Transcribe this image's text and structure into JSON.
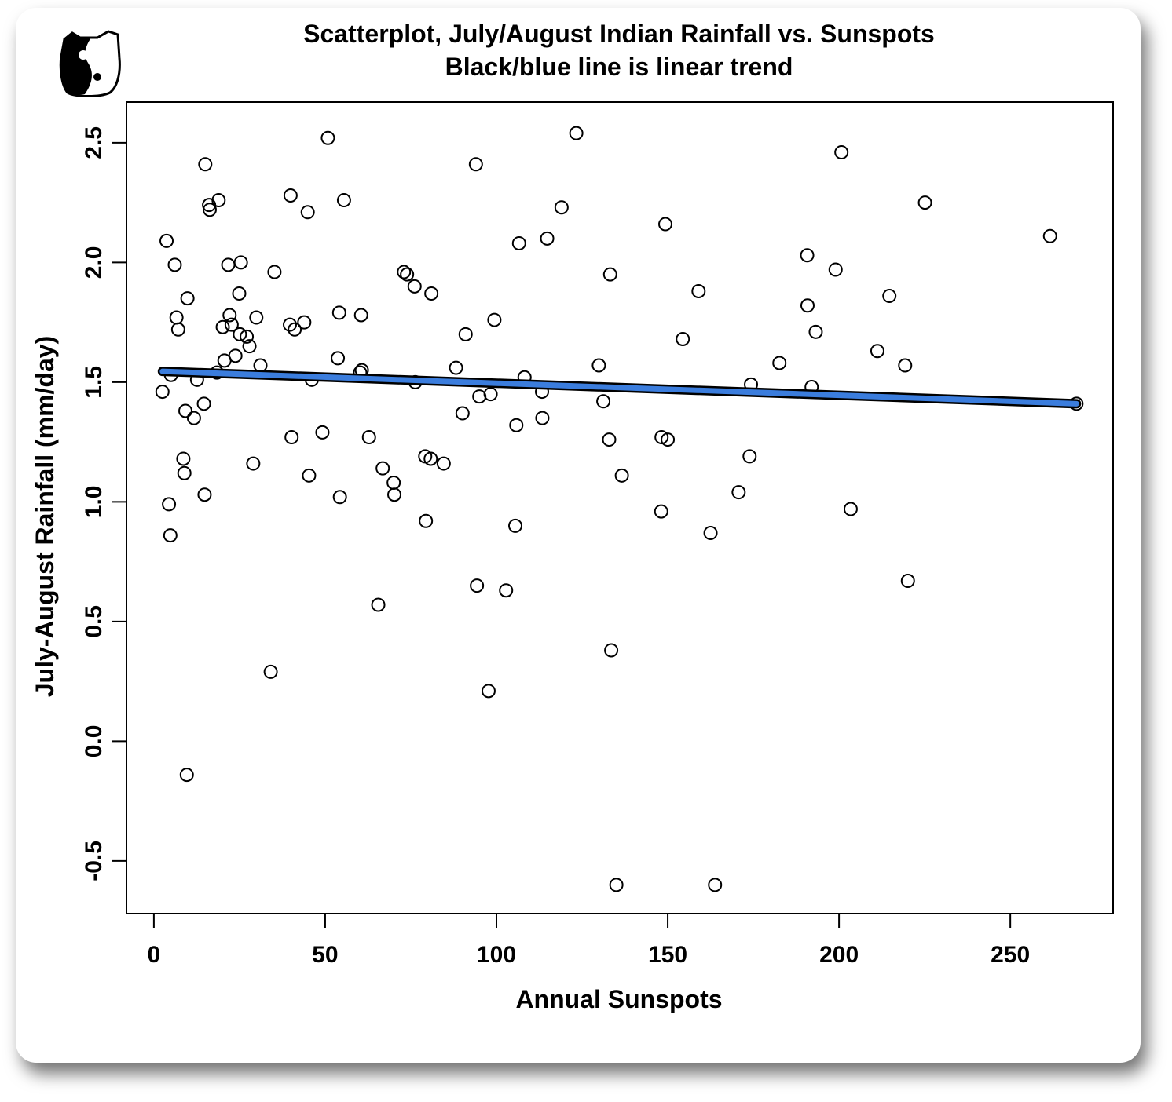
{
  "chart_data": {
    "type": "scatter",
    "title": "Scatterplot, July/August Indian Rainfall vs. Sunspots",
    "subtitle": "Black/blue line is linear trend",
    "xlabel": "Annual Sunspots",
    "ylabel": "July-August Rainfall (mm/day)",
    "xlim": [
      -8,
      280
    ],
    "ylim": [
      -0.72,
      2.67
    ],
    "x_ticks": [
      0,
      50,
      100,
      150,
      200,
      250
    ],
    "x_tick_labels": [
      "0",
      "50",
      "100",
      "150",
      "200",
      "250"
    ],
    "y_ticks": [
      -0.5,
      0.0,
      0.5,
      1.0,
      1.5,
      2.0,
      2.5
    ],
    "y_tick_labels": [
      "-0.5",
      "0.0",
      "0.5",
      "1.0",
      "1.5",
      "2.0",
      "2.5"
    ],
    "grid": false,
    "colors": {
      "trend_line": "#3b7ddd",
      "trend_outline": "#000000",
      "points": "#000000"
    },
    "trend": {
      "x": [
        2.5,
        269.3
      ],
      "y": [
        1.545,
        1.41
      ]
    },
    "points": [
      {
        "x": 2.5,
        "y": 1.46
      },
      {
        "x": 3.7,
        "y": 2.09
      },
      {
        "x": 4.4,
        "y": 0.99
      },
      {
        "x": 4.8,
        "y": 0.86
      },
      {
        "x": 5.0,
        "y": 1.53
      },
      {
        "x": 6.1,
        "y": 1.99
      },
      {
        "x": 6.6,
        "y": 1.77
      },
      {
        "x": 7.1,
        "y": 1.72
      },
      {
        "x": 8.6,
        "y": 1.18
      },
      {
        "x": 8.9,
        "y": 1.12
      },
      {
        "x": 9.2,
        "y": 1.38
      },
      {
        "x": 9.6,
        "y": -0.14
      },
      {
        "x": 9.8,
        "y": 1.85
      },
      {
        "x": 11.7,
        "y": 1.35
      },
      {
        "x": 12.6,
        "y": 1.51
      },
      {
        "x": 14.6,
        "y": 1.41
      },
      {
        "x": 14.8,
        "y": 1.03
      },
      {
        "x": 15.0,
        "y": 2.41
      },
      {
        "x": 16.1,
        "y": 2.24
      },
      {
        "x": 16.3,
        "y": 2.22
      },
      {
        "x": 18.4,
        "y": 1.54
      },
      {
        "x": 18.9,
        "y": 2.26
      },
      {
        "x": 20.1,
        "y": 1.73
      },
      {
        "x": 20.6,
        "y": 1.59
      },
      {
        "x": 21.7,
        "y": 1.99
      },
      {
        "x": 22.1,
        "y": 1.78
      },
      {
        "x": 22.7,
        "y": 1.74
      },
      {
        "x": 23.8,
        "y": 1.61
      },
      {
        "x": 24.9,
        "y": 1.87
      },
      {
        "x": 25.1,
        "y": 1.7
      },
      {
        "x": 25.4,
        "y": 2.0
      },
      {
        "x": 27.1,
        "y": 1.69
      },
      {
        "x": 27.9,
        "y": 1.65
      },
      {
        "x": 29.0,
        "y": 1.16
      },
      {
        "x": 29.9,
        "y": 1.77
      },
      {
        "x": 31.1,
        "y": 1.57
      },
      {
        "x": 34.1,
        "y": 0.29
      },
      {
        "x": 35.2,
        "y": 1.96
      },
      {
        "x": 39.7,
        "y": 1.74
      },
      {
        "x": 39.9,
        "y": 2.28
      },
      {
        "x": 40.2,
        "y": 1.27
      },
      {
        "x": 41.1,
        "y": 1.72
      },
      {
        "x": 43.9,
        "y": 1.75
      },
      {
        "x": 44.9,
        "y": 2.21
      },
      {
        "x": 45.3,
        "y": 1.11
      },
      {
        "x": 46.1,
        "y": 1.51
      },
      {
        "x": 49.2,
        "y": 1.29
      },
      {
        "x": 50.8,
        "y": 2.52
      },
      {
        "x": 53.7,
        "y": 1.6
      },
      {
        "x": 54.1,
        "y": 1.79
      },
      {
        "x": 54.3,
        "y": 1.02
      },
      {
        "x": 55.5,
        "y": 2.26
      },
      {
        "x": 60.2,
        "y": 1.54
      },
      {
        "x": 60.5,
        "y": 1.78
      },
      {
        "x": 60.7,
        "y": 1.55
      },
      {
        "x": 62.8,
        "y": 1.27
      },
      {
        "x": 65.5,
        "y": 0.57
      },
      {
        "x": 66.8,
        "y": 1.14
      },
      {
        "x": 70.0,
        "y": 1.08
      },
      {
        "x": 70.2,
        "y": 1.03
      },
      {
        "x": 73.0,
        "y": 1.96
      },
      {
        "x": 73.9,
        "y": 1.95
      },
      {
        "x": 76.1,
        "y": 1.9
      },
      {
        "x": 76.3,
        "y": 1.5
      },
      {
        "x": 79.2,
        "y": 1.19
      },
      {
        "x": 79.4,
        "y": 0.92
      },
      {
        "x": 80.8,
        "y": 1.18
      },
      {
        "x": 81.0,
        "y": 1.87
      },
      {
        "x": 84.6,
        "y": 1.16
      },
      {
        "x": 88.2,
        "y": 1.56
      },
      {
        "x": 90.1,
        "y": 1.37
      },
      {
        "x": 91.0,
        "y": 1.7
      },
      {
        "x": 94.0,
        "y": 2.41
      },
      {
        "x": 94.3,
        "y": 0.65
      },
      {
        "x": 95.0,
        "y": 1.44
      },
      {
        "x": 97.7,
        "y": 0.21
      },
      {
        "x": 98.3,
        "y": 1.45
      },
      {
        "x": 99.4,
        "y": 1.76
      },
      {
        "x": 102.8,
        "y": 0.63
      },
      {
        "x": 105.5,
        "y": 0.9
      },
      {
        "x": 105.8,
        "y": 1.32
      },
      {
        "x": 106.6,
        "y": 2.08
      },
      {
        "x": 108.2,
        "y": 1.52
      },
      {
        "x": 113.3,
        "y": 1.46
      },
      {
        "x": 113.4,
        "y": 1.35
      },
      {
        "x": 114.8,
        "y": 2.1
      },
      {
        "x": 119.0,
        "y": 2.23
      },
      {
        "x": 123.3,
        "y": 2.54
      },
      {
        "x": 129.9,
        "y": 1.57
      },
      {
        "x": 131.2,
        "y": 1.42
      },
      {
        "x": 132.9,
        "y": 1.26
      },
      {
        "x": 133.2,
        "y": 1.95
      },
      {
        "x": 133.5,
        "y": 0.38
      },
      {
        "x": 135.0,
        "y": -0.6
      },
      {
        "x": 136.6,
        "y": 1.11
      },
      {
        "x": 148.1,
        "y": 0.96
      },
      {
        "x": 148.2,
        "y": 1.27
      },
      {
        "x": 149.3,
        "y": 2.16
      },
      {
        "x": 150.0,
        "y": 1.26
      },
      {
        "x": 154.4,
        "y": 1.68
      },
      {
        "x": 159.0,
        "y": 1.88
      },
      {
        "x": 162.5,
        "y": 0.87
      },
      {
        "x": 163.8,
        "y": -0.6
      },
      {
        "x": 170.7,
        "y": 1.04
      },
      {
        "x": 173.9,
        "y": 1.19
      },
      {
        "x": 174.3,
        "y": 1.49
      },
      {
        "x": 182.6,
        "y": 1.58
      },
      {
        "x": 190.7,
        "y": 2.03
      },
      {
        "x": 190.8,
        "y": 1.82
      },
      {
        "x": 192.0,
        "y": 1.48
      },
      {
        "x": 193.2,
        "y": 1.71
      },
      {
        "x": 199.0,
        "y": 1.97
      },
      {
        "x": 200.7,
        "y": 2.46
      },
      {
        "x": 203.4,
        "y": 0.97
      },
      {
        "x": 211.2,
        "y": 1.63
      },
      {
        "x": 214.7,
        "y": 1.86
      },
      {
        "x": 219.3,
        "y": 1.57
      },
      {
        "x": 220.1,
        "y": 0.67
      },
      {
        "x": 225.1,
        "y": 2.25
      },
      {
        "x": 261.6,
        "y": 2.11
      },
      {
        "x": 269.3,
        "y": 1.41
      }
    ]
  },
  "logo": {
    "name": "yin-yang-cat-icon"
  }
}
